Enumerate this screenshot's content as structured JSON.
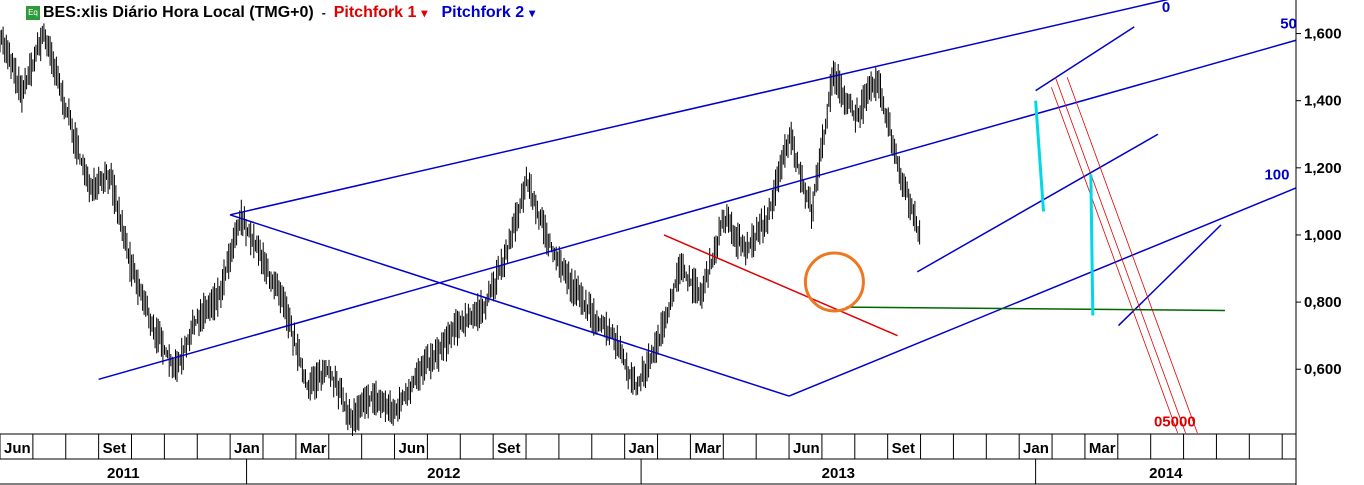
{
  "header": {
    "icon_label": "Eq",
    "symbol_title": "BES:xlis Diário Hora Local (TMG+0)",
    "pitchfork1": "Pitchfork 1",
    "pitchfork2": "Pitchfork 2",
    "separator": "-",
    "dropdown": "▾"
  },
  "colors": {
    "price": "#000000",
    "pitchfork1": "#e00000",
    "pitchfork2": "#0000cc",
    "highlight_cyan": "#00d8e8",
    "support_green": "#006600",
    "circle_orange": "#ee7722"
  },
  "chart_data": {
    "type": "line",
    "title": "BES:xlis Diário Hora Local (TMG+0)",
    "y_axis_position": "right",
    "ylim": [
      0.41,
      1.7
    ],
    "y_ticks": [
      "0,600",
      "0,800",
      "1,000",
      "1,200",
      "1,400",
      "1,600"
    ],
    "y_tick_values": [
      0.6,
      0.8,
      1.0,
      1.2,
      1.4,
      1.6
    ],
    "x_range": [
      2011.375,
      2014.66
    ],
    "month_labels": [
      {
        "label": "Jun",
        "t": 2011.375
      },
      {
        "label": "Set",
        "t": 2011.625
      },
      {
        "label": "Jan",
        "t": 2011.958
      },
      {
        "label": "Mar",
        "t": 2012.125
      },
      {
        "label": "Jun",
        "t": 2012.375
      },
      {
        "label": "Set",
        "t": 2012.625
      },
      {
        "label": "Jan",
        "t": 2012.958
      },
      {
        "label": "Mar",
        "t": 2013.125
      },
      {
        "label": "Jun",
        "t": 2013.375
      },
      {
        "label": "Set",
        "t": 2013.625
      },
      {
        "label": "Jan",
        "t": 2013.958
      },
      {
        "label": "Mar",
        "t": 2014.125
      }
    ],
    "year_labels": [
      "2011",
      "2012",
      "2013",
      "2014"
    ],
    "price_series": [
      {
        "date": "2011-05",
        "value": 1.6
      },
      {
        "date": "2011-06",
        "value": 1.42
      },
      {
        "date": "2011-07",
        "value": 1.6
      },
      {
        "date": "2011-08",
        "value": 1.38
      },
      {
        "date": "2011-08b",
        "value": 1.15
      },
      {
        "date": "2011-09",
        "value": 1.18
      },
      {
        "date": "2011-10",
        "value": 0.9
      },
      {
        "date": "2011-11",
        "value": 0.72
      },
      {
        "date": "2011-12",
        "value": 0.6
      },
      {
        "date": "2011-12b",
        "value": 0.75
      },
      {
        "date": "2012-01",
        "value": 0.82
      },
      {
        "date": "2012-01b",
        "value": 1.05
      },
      {
        "date": "2012-02",
        "value": 0.92
      },
      {
        "date": "2012-02b",
        "value": 0.78
      },
      {
        "date": "2012-03",
        "value": 0.55
      },
      {
        "date": "2012-04",
        "value": 0.6
      },
      {
        "date": "2012-05",
        "value": 0.45
      },
      {
        "date": "2012-06",
        "value": 0.52
      },
      {
        "date": "2012-07",
        "value": 0.47
      },
      {
        "date": "2012-08",
        "value": 0.58
      },
      {
        "date": "2012-09",
        "value": 0.65
      },
      {
        "date": "2012-10",
        "value": 0.74
      },
      {
        "date": "2012-11",
        "value": 0.78
      },
      {
        "date": "2012-12",
        "value": 0.92
      },
      {
        "date": "2013-01",
        "value": 1.16
      },
      {
        "date": "2013-02",
        "value": 0.98
      },
      {
        "date": "2013-03",
        "value": 0.86
      },
      {
        "date": "2013-04",
        "value": 0.76
      },
      {
        "date": "2013-05",
        "value": 0.7
      },
      {
        "date": "2013-06",
        "value": 0.54
      },
      {
        "date": "2013-06b",
        "value": 0.68
      },
      {
        "date": "2013-07",
        "value": 0.9
      },
      {
        "date": "2013-08",
        "value": 0.82
      },
      {
        "date": "2013-09",
        "value": 1.05
      },
      {
        "date": "2013-10",
        "value": 0.95
      },
      {
        "date": "2013-11",
        "value": 1.05
      },
      {
        "date": "2013-12",
        "value": 1.3
      },
      {
        "date": "2013-12b",
        "value": 1.07
      },
      {
        "date": "2014-01",
        "value": 1.48
      },
      {
        "date": "2014-02",
        "value": 1.35
      },
      {
        "date": "2014-03",
        "value": 1.46
      },
      {
        "date": "2014-04",
        "value": 1.2
      },
      {
        "date": "2014-04b",
        "value": 0.98
      }
    ],
    "pitchfork2": {
      "name": "Pitchfork 2",
      "level_labels": [
        "0",
        "50",
        "100"
      ],
      "lines": [
        {
          "role": "level-0",
          "from": {
            "t": 2011.958,
            "y": 1.06
          },
          "to": {
            "t": 2014.7,
            "y": 1.8
          }
        },
        {
          "role": "level-50",
          "from": {
            "t": 2011.625,
            "y": 0.57
          },
          "to": {
            "t": 2014.66,
            "y": 1.58
          }
        },
        {
          "role": "level-100",
          "from": {
            "t": 2013.375,
            "y": 0.52
          },
          "to": {
            "t": 2014.66,
            "y": 1.14
          }
        },
        {
          "role": "handle",
          "from": {
            "t": 2011.958,
            "y": 1.06
          },
          "to": {
            "t": 2013.375,
            "y": 0.52
          }
        },
        {
          "role": "aux-top",
          "from": {
            "t": 2014.0,
            "y": 1.43
          },
          "to": {
            "t": 2014.25,
            "y": 1.62
          }
        },
        {
          "role": "aux-mid",
          "from": {
            "t": 2013.7,
            "y": 0.89
          },
          "to": {
            "t": 2014.31,
            "y": 1.3
          }
        },
        {
          "role": "aux-bottom",
          "from": {
            "t": 2014.21,
            "y": 0.73
          },
          "to": {
            "t": 2014.47,
            "y": 1.03
          }
        }
      ]
    },
    "pitchfork1": {
      "name": "Pitchfork 1",
      "level_labels": [
        "0",
        "50",
        "100"
      ],
      "label_text": "05000",
      "lines": [
        {
          "role": "handle",
          "from": {
            "t": 2013.058,
            "y": 1.0
          },
          "to": {
            "t": 2013.65,
            "y": 0.7
          }
        },
        {
          "role": "line-a",
          "from": {
            "t": 2014.04,
            "y": 1.44
          },
          "to": {
            "t": 2014.36,
            "y": 0.41
          }
        },
        {
          "role": "line-b",
          "from": {
            "t": 2014.05,
            "y": 1.47
          },
          "to": {
            "t": 2014.38,
            "y": 0.41
          }
        },
        {
          "role": "line-c",
          "from": {
            "t": 2014.08,
            "y": 1.47
          },
          "to": {
            "t": 2014.41,
            "y": 0.41
          }
        }
      ]
    },
    "support_line": {
      "from": {
        "t": 2013.52,
        "y": 0.785
      },
      "to": {
        "t": 2014.48,
        "y": 0.775
      }
    },
    "cyan_segments": [
      {
        "from": {
          "t": 2014.0,
          "y": 1.4
        },
        "to": {
          "t": 2014.02,
          "y": 1.07
        }
      },
      {
        "from": {
          "t": 2014.14,
          "y": 1.18
        },
        "to": {
          "t": 2014.145,
          "y": 0.76
        }
      }
    ],
    "highlight_circle": {
      "t": 2013.49,
      "y": 0.86
    }
  }
}
